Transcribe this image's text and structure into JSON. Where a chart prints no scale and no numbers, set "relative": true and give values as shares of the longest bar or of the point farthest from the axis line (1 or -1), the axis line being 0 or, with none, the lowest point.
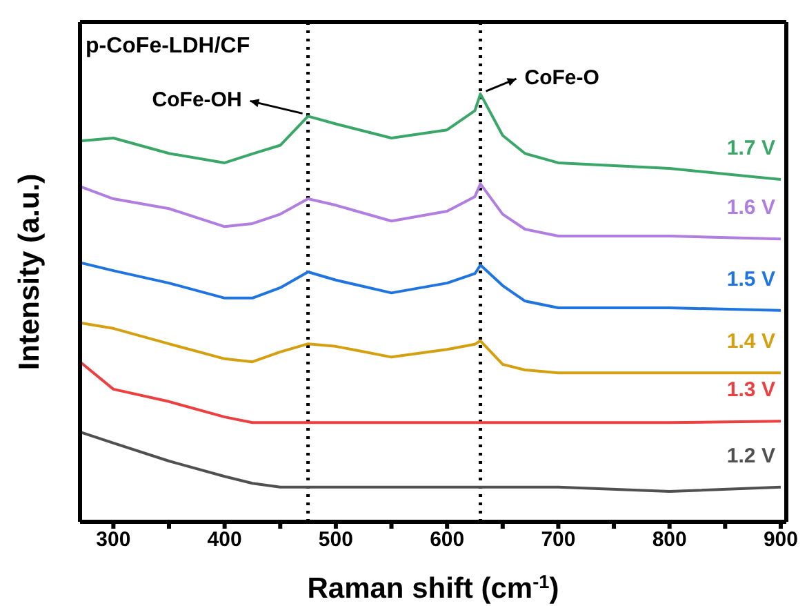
{
  "chart_data": {
    "type": "line",
    "relative": true,
    "xlabel": "Raman shift (cm$^{-1}$)",
    "ylabel": "Intensity (a.u.)",
    "x": [
      270,
      300,
      350,
      400,
      425,
      450,
      475,
      500,
      550,
      600,
      625,
      630,
      650,
      670,
      700,
      800,
      900
    ],
    "xlim": [
      270,
      905
    ],
    "xticks": [
      300,
      {
        "value": 350,
        "label": null
      },
      400,
      {
        "value": 450,
        "label": null
      },
      500,
      {
        "value": 550,
        "label": null
      },
      600,
      {
        "value": 650,
        "label": null
      },
      700,
      {
        "value": 750,
        "label": null
      },
      800,
      {
        "value": 850,
        "label": null
      },
      900
    ],
    "series": [
      {
        "name": "1.7 V",
        "color": "#3aa668",
        "values": [
          0.89,
          0.897,
          0.861,
          0.839,
          0.86,
          0.88,
          0.948,
          0.93,
          0.897,
          0.916,
          0.961,
          1.0,
          0.903,
          0.861,
          0.839,
          0.826,
          0.8
        ]
      },
      {
        "name": "1.6 V",
        "color": "#b07ee0",
        "values": [
          0.784,
          0.755,
          0.732,
          0.69,
          0.697,
          0.719,
          0.755,
          0.74,
          0.703,
          0.726,
          0.76,
          0.79,
          0.719,
          0.684,
          0.668,
          0.668,
          0.661
        ]
      },
      {
        "name": "1.5 V",
        "color": "#1f74e0",
        "values": [
          0.606,
          0.587,
          0.558,
          0.523,
          0.523,
          0.547,
          0.584,
          0.565,
          0.535,
          0.558,
          0.58,
          0.6,
          0.552,
          0.516,
          0.5,
          0.5,
          0.494
        ]
      },
      {
        "name": "1.4 V",
        "color": "#d4a010",
        "values": [
          0.465,
          0.452,
          0.416,
          0.381,
          0.374,
          0.397,
          0.416,
          0.41,
          0.385,
          0.403,
          0.415,
          0.423,
          0.368,
          0.355,
          0.348,
          0.348,
          0.348
        ]
      },
      {
        "name": "1.3 V",
        "color": "#ec3f3f",
        "values": [
          0.374,
          0.31,
          0.281,
          0.245,
          0.232,
          0.232,
          0.232,
          0.232,
          0.232,
          0.232,
          0.232,
          0.232,
          0.232,
          0.232,
          0.232,
          0.232,
          0.235
        ]
      },
      {
        "name": "1.2 V",
        "color": "#505050",
        "values": [
          0.21,
          0.184,
          0.142,
          0.106,
          0.09,
          0.081,
          0.081,
          0.081,
          0.081,
          0.081,
          0.081,
          0.081,
          0.081,
          0.081,
          0.081,
          0.071,
          0.081
        ]
      }
    ],
    "ref_lines": [
      {
        "axis": "x",
        "value": 475,
        "color": "#000000",
        "line_style": "dotted"
      },
      {
        "axis": "x",
        "value": 630,
        "color": "#000000",
        "line_style": "dotted"
      }
    ],
    "annotations": [
      "p-CoFe-LDH/CF",
      {
        "text": "CoFe-OH",
        "x": 475,
        "y": 0.948
      },
      {
        "text": "CoFe-O",
        "x": 630,
        "y": 1.0
      }
    ],
    "marker": "none",
    "line_style": "solid"
  }
}
